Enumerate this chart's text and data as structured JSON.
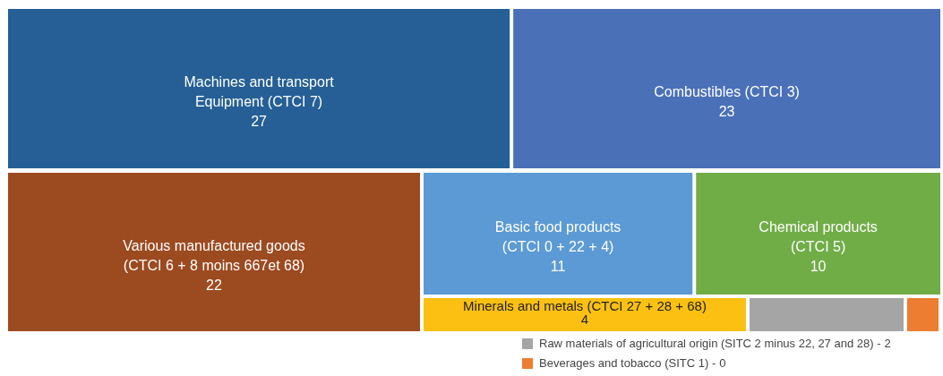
{
  "chart_data": {
    "type": "other",
    "categories": [
      "Machines and transport\nEquipment (CTCI 7)",
      "Combustibles  (CTCI 3)",
      "Various manufactured goods\n(CTCI 6 + 8 moins 667et 68)",
      "Basic food products\n(CTCI 0 + 22 + 4)",
      "Chemical products\n(CTCI 5)",
      "Minerals and metals (CTCI 27 + 28 + 68)",
      "Raw materials of agricultural origin (SITC 2 minus 22, 27 and 28) -",
      "Beverages and tobacco (SITC 1) -"
    ],
    "values": [
      27,
      23,
      22,
      11,
      10,
      4,
      2,
      0
    ],
    "colors": [
      "#255f96",
      "#4a70b8",
      "#9c4a20",
      "#5b9ad5",
      "#70ad47",
      "#fbc012",
      "#a5a5a5",
      "#ed7d31"
    ],
    "data_labels": true
  }
}
